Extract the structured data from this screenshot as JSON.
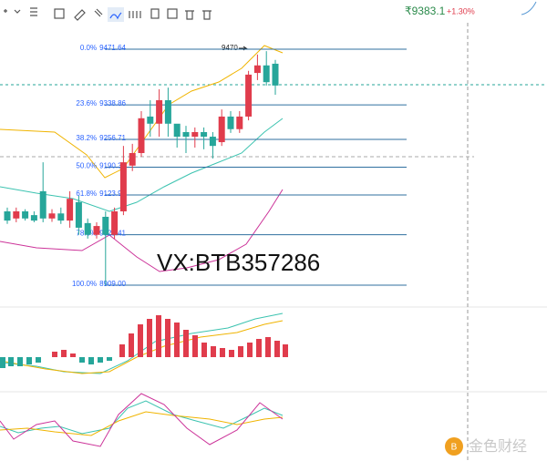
{
  "ticker": {
    "price": "₹9383.1",
    "change": "+1.30%"
  },
  "annotation": "9470",
  "watermark": "VX:BTB357286",
  "logo": "金色财经",
  "fib_levels": [
    {
      "ratio": "0.0%",
      "value": 9471.64,
      "label": "9471.64"
    },
    {
      "ratio": "23.6%",
      "value": 9338.86,
      "label": "9338.86"
    },
    {
      "ratio": "38.2%",
      "value": 9256.71,
      "label": "9256.71"
    },
    {
      "ratio": "50.0%",
      "value": 9190.32,
      "label": "9190.32"
    },
    {
      "ratio": "61.8%",
      "value": 9123.93,
      "label": "9123.93"
    },
    {
      "ratio": "78.6%",
      "value": 9029.41,
      "label": "9029.41"
    },
    {
      "ratio": "100.0%",
      "value": 8909,
      "label": "8909.00"
    }
  ],
  "candles": [
    [
      9085,
      9094,
      9055,
      9063
    ],
    [
      9068,
      9094,
      9059,
      9085
    ],
    [
      9085,
      9090,
      9063,
      9068
    ],
    [
      9076,
      9085,
      9059,
      9063
    ],
    [
      9133,
      9202,
      9059,
      9068
    ],
    [
      9068,
      9090,
      9060,
      9080
    ],
    [
      9080,
      9094,
      9055,
      9063
    ],
    [
      9063,
      9133,
      9046,
      9115
    ],
    [
      9107,
      9122,
      9029,
      9046
    ],
    [
      9057,
      9068,
      9020,
      9029
    ],
    [
      9029,
      9059,
      9020,
      9050
    ],
    [
      9072,
      9085,
      8909,
      9029
    ],
    [
      9029,
      9094,
      9020,
      9085
    ],
    [
      9085,
      9241,
      9076,
      9202
    ],
    [
      9194,
      9246,
      9181,
      9224
    ],
    [
      9224,
      9324,
      9215,
      9307
    ],
    [
      9311,
      9350,
      9263,
      9294
    ],
    [
      9294,
      9376,
      9263,
      9350
    ],
    [
      9350,
      9380,
      9263,
      9294
    ],
    [
      9294,
      9289,
      9237,
      9263
    ],
    [
      9274,
      9289,
      9224,
      9263
    ],
    [
      9263,
      9285,
      9237,
      9274
    ],
    [
      9274,
      9285,
      9233,
      9263
    ],
    [
      9263,
      9274,
      9211,
      9241
    ],
    [
      9250,
      9328,
      9241,
      9311
    ],
    [
      9311,
      9324,
      9272,
      9281
    ],
    [
      9281,
      9324,
      9272,
      9311
    ],
    [
      9311,
      9420,
      9302,
      9411
    ],
    [
      9415,
      9459,
      9398,
      9433
    ],
    [
      9433,
      9467,
      9385,
      9393
    ],
    [
      9437,
      9446,
      9363,
      9385
    ]
  ]
}
